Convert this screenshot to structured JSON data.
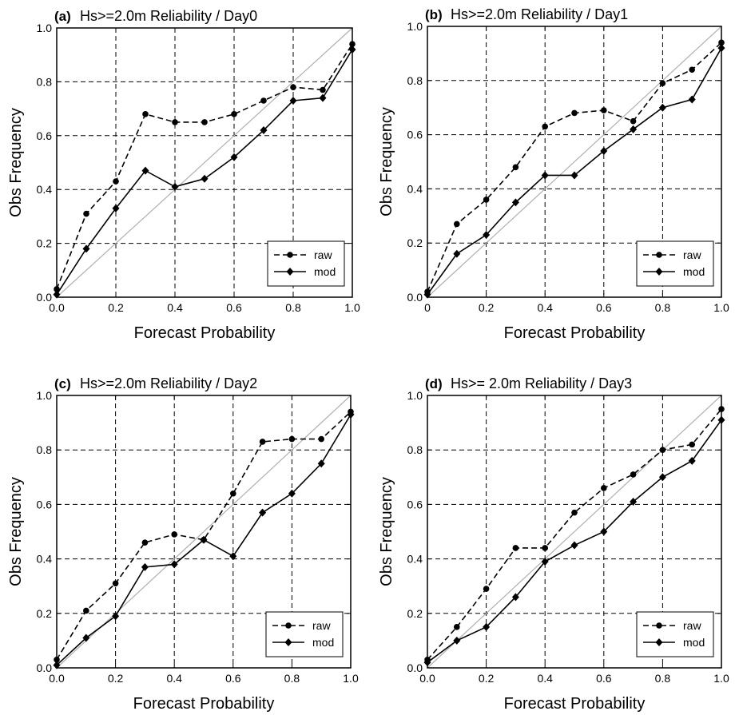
{
  "chart_data": [
    {
      "type": "line",
      "panel_label": "(a)",
      "title": "Hs>=2.0m Reliability / Day0",
      "xlabel": "Forecast Probability",
      "ylabel": "Obs Frequency",
      "xlim": [
        0,
        1
      ],
      "ylim": [
        0,
        1
      ],
      "x_ticks": [
        "0.0",
        "0.2",
        "0.4",
        "0.6",
        "0.8",
        "1.0"
      ],
      "y_ticks": [
        "0.0",
        "0.2",
        "0.4",
        "0.6",
        "0.8",
        "1.0"
      ],
      "grid": true,
      "diagonal_reference": true,
      "legend_position": "bottom-right",
      "x": [
        0.0,
        0.1,
        0.2,
        0.3,
        0.4,
        0.5,
        0.6,
        0.7,
        0.8,
        0.9,
        1.0
      ],
      "series": [
        {
          "name": "raw",
          "style": "dashed",
          "marker": "circle",
          "values": [
            0.03,
            0.31,
            0.43,
            0.68,
            0.65,
            0.65,
            0.68,
            0.73,
            0.78,
            0.77,
            0.94
          ]
        },
        {
          "name": "mod",
          "style": "solid",
          "marker": "diamond",
          "values": [
            0.01,
            0.18,
            0.33,
            0.47,
            0.41,
            0.44,
            0.52,
            0.62,
            0.73,
            0.74,
            0.92
          ]
        }
      ]
    },
    {
      "type": "line",
      "panel_label": "(b)",
      "title": "Hs>=2.0m Reliability / Day1",
      "xlabel": "Forecast Probability",
      "ylabel": "Obs Frequency",
      "xlim": [
        0,
        1
      ],
      "ylim": [
        0,
        1
      ],
      "x_ticks": [
        "0",
        "0.2",
        "0.4",
        "0.6",
        "0.8",
        "1.0"
      ],
      "y_ticks": [
        "0.0",
        "0.2",
        "0.4",
        "0.6",
        "0.8",
        "1.0"
      ],
      "grid": true,
      "diagonal_reference": true,
      "legend_position": "bottom-right",
      "x": [
        0.0,
        0.1,
        0.2,
        0.3,
        0.4,
        0.5,
        0.6,
        0.7,
        0.8,
        0.9,
        1.0
      ],
      "series": [
        {
          "name": "raw",
          "style": "dashed",
          "marker": "circle",
          "values": [
            0.02,
            0.27,
            0.36,
            0.48,
            0.63,
            0.68,
            0.69,
            0.65,
            0.79,
            0.84,
            0.94
          ]
        },
        {
          "name": "mod",
          "style": "solid",
          "marker": "diamond",
          "values": [
            0.01,
            0.16,
            0.23,
            0.35,
            0.45,
            0.45,
            0.54,
            0.62,
            0.7,
            0.73,
            0.92
          ]
        }
      ]
    },
    {
      "type": "line",
      "panel_label": "(c)",
      "title": "Hs>=2.0m Reliability / Day2",
      "xlabel": "Forecast Probability",
      "ylabel": "Obs Frequency",
      "xlim": [
        0,
        1
      ],
      "ylim": [
        0,
        1
      ],
      "x_ticks": [
        "0.0",
        "0.2",
        "0.4",
        "0.6",
        "0.8",
        "1.0"
      ],
      "y_ticks": [
        "0.0",
        "0.2",
        "0.4",
        "0.6",
        "0.8",
        "1.0"
      ],
      "grid": true,
      "diagonal_reference": true,
      "legend_position": "bottom-right",
      "x": [
        0.0,
        0.1,
        0.2,
        0.3,
        0.4,
        0.5,
        0.6,
        0.7,
        0.8,
        0.9,
        1.0
      ],
      "series": [
        {
          "name": "raw",
          "style": "dashed",
          "marker": "circle",
          "values": [
            0.03,
            0.21,
            0.31,
            0.46,
            0.49,
            0.47,
            0.64,
            0.83,
            0.84,
            0.84,
            0.94
          ]
        },
        {
          "name": "mod",
          "style": "solid",
          "marker": "diamond",
          "values": [
            0.01,
            0.11,
            0.19,
            0.37,
            0.38,
            0.47,
            0.41,
            0.57,
            0.64,
            0.75,
            0.93
          ]
        }
      ]
    },
    {
      "type": "line",
      "panel_label": "(d)",
      "title": "Hs>= 2.0m Reliability / Day3",
      "xlabel": "Forecast Probability",
      "ylabel": "Obs Frequency",
      "xlim": [
        0,
        1
      ],
      "ylim": [
        0,
        1
      ],
      "x_ticks": [
        "0.0",
        "0.2",
        "0.4",
        "0.6",
        "0.8",
        "1.0"
      ],
      "y_ticks": [
        "0.0",
        "0.2",
        "0.4",
        "0.6",
        "0.8",
        "1.0"
      ],
      "grid": true,
      "diagonal_reference": true,
      "legend_position": "bottom-right",
      "x": [
        0.0,
        0.1,
        0.2,
        0.3,
        0.4,
        0.5,
        0.6,
        0.7,
        0.8,
        0.9,
        1.0
      ],
      "series": [
        {
          "name": "raw",
          "style": "dashed",
          "marker": "circle",
          "values": [
            0.03,
            0.15,
            0.29,
            0.44,
            0.44,
            0.57,
            0.66,
            0.71,
            0.8,
            0.82,
            0.95
          ]
        },
        {
          "name": "mod",
          "style": "solid",
          "marker": "diamond",
          "values": [
            0.02,
            0.1,
            0.15,
            0.26,
            0.39,
            0.45,
            0.5,
            0.61,
            0.7,
            0.76,
            0.91
          ]
        }
      ]
    }
  ]
}
